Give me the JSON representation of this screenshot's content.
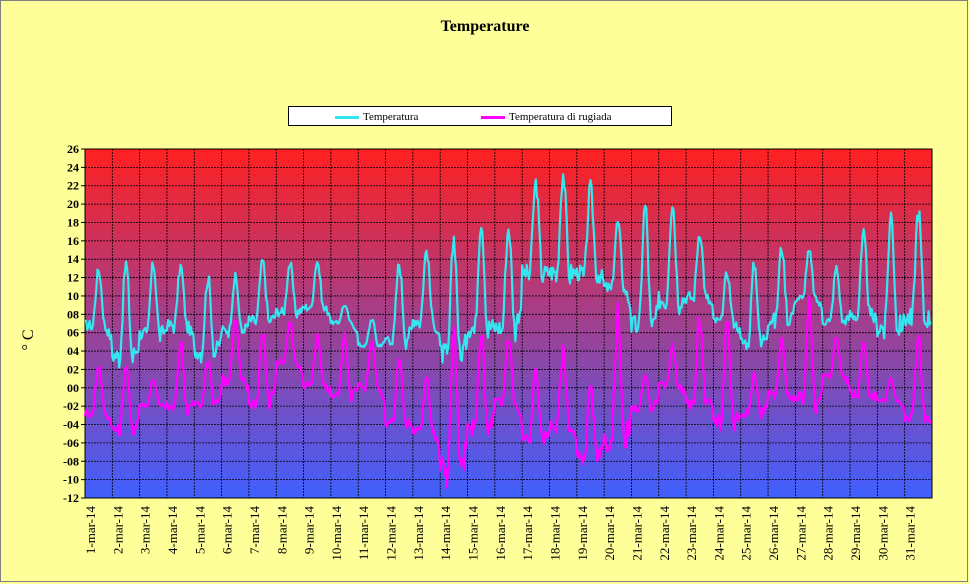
{
  "chart_data": {
    "type": "line",
    "title": "Temperature",
    "ylabel": "° C",
    "xlabel": "",
    "ylim": [
      -12,
      26
    ],
    "y_ticks": [
      "26",
      "24",
      "22",
      "20",
      "18",
      "16",
      "14",
      "12",
      "10",
      "08",
      "06",
      "04",
      "02",
      "00",
      "-02",
      "-04",
      "-06",
      "-08",
      "-10",
      "-12"
    ],
    "x_ticks": [
      "1-mar-14",
      "2-mar-14",
      "3-mar-14",
      "4-mar-14",
      "5-mar-14",
      "6-mar-14",
      "7-mar-14",
      "8-mar-14",
      "9-mar-14",
      "10-mar-14",
      "11-mar-14",
      "12-mar-14",
      "13-mar-14",
      "14-mar-14",
      "15-mar-14",
      "16-mar-14",
      "17-mar-14",
      "18-mar-14",
      "19-mar-14",
      "20-mar-14",
      "21-mar-14",
      "22-mar-14",
      "23-mar-14",
      "24-mar-14",
      "25-mar-14",
      "26-mar-14",
      "27-mar-14",
      "28-mar-14",
      "29-mar-14",
      "30-mar-14",
      "31-mar-14"
    ],
    "grid": true,
    "legend_position": "top-center",
    "background_gradient": {
      "top": "#ff2020",
      "bottom": "#4060ff"
    },
    "series": [
      {
        "name": "Temperatura",
        "color": "#33e6f0",
        "daily_min": [
          6.5,
          3.0,
          5.5,
          6.5,
          3.5,
          6.0,
          7.0,
          8.0,
          8.5,
          7.0,
          4.5,
          5.0,
          7.0,
          3.0,
          6.0,
          6.0,
          12.0,
          12.0,
          12.0,
          10.5,
          6.0,
          9.0,
          9.5,
          7.0,
          4.5,
          7.0,
          9.5,
          7.0,
          7.5,
          6.0,
          7.0
        ],
        "daily_max": [
          12.8,
          13.5,
          13.5,
          13.2,
          12.0,
          12.0,
          13.8,
          13.5,
          13.8,
          9.0,
          7.5,
          13.5,
          15.0,
          16.3,
          18.3,
          17.5,
          22.3,
          23.3,
          21.8,
          18.0,
          19.8,
          20.2,
          17.0,
          12.5,
          13.5,
          15.3,
          14.8,
          13.0,
          16.5,
          18.8,
          19.3
        ]
      },
      {
        "name": "Temperatura di rugiada",
        "color": "#ff00ff",
        "daily_min": [
          -3.0,
          -5.0,
          -2.0,
          -2.5,
          -2.0,
          0.5,
          -2.0,
          2.5,
          0.0,
          -1.0,
          0.0,
          -4.0,
          -5.0,
          -9.5,
          -5.0,
          -2.0,
          -6.0,
          -4.5,
          -8.0,
          -6.5,
          -2.5,
          0.0,
          -2.0,
          -4.0,
          -3.0,
          -1.0,
          -2.0,
          1.0,
          -1.0,
          -1.5,
          -3.5
        ],
        "daily_max": [
          2.5,
          2.5,
          1.0,
          5.0,
          3.0,
          7.5,
          6.0,
          7.0,
          5.5,
          5.5,
          5.0,
          3.5,
          1.5,
          6.0,
          6.0,
          5.5,
          2.0,
          4.0,
          0.0,
          8.0,
          1.5,
          4.5,
          7.5,
          7.5,
          1.5,
          5.0,
          9.0,
          5.5,
          5.0,
          1.0,
          5.5
        ]
      }
    ]
  }
}
